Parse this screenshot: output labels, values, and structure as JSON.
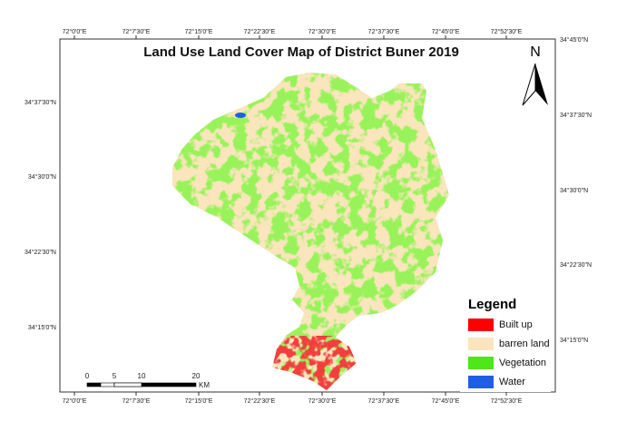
{
  "title": "Land Use Land Cover Map of District Buner 2019",
  "north": "N",
  "graticule": {
    "top": [
      "72°0'0\"E",
      "72°7'30\"E",
      "72°15'0\"E",
      "72°22'30\"E",
      "72°30'0\"E",
      "72°37'30\"E",
      "72°45'0\"E",
      "72°52'30\"E"
    ],
    "bottom": [
      "72°0'0\"E",
      "72°7'30\"E",
      "72°15'0\"E",
      "72°22'30\"E",
      "72°30'0\"E",
      "72°37'30\"E",
      "72°45'0\"E",
      "72°52'30\"E"
    ],
    "left": [
      "34°37'30\"N",
      "34°30'0\"N",
      "34°22'30\"N",
      "34°15'0\"N"
    ],
    "right": [
      "34°45'0\"N",
      "34°37'30\"N",
      "34°30'0\"N",
      "34°22'30\"N",
      "34°15'0\"N"
    ]
  },
  "legend": {
    "title": "Legend",
    "items": [
      {
        "label": "Built up",
        "color": "#ff0000"
      },
      {
        "label": "barren land",
        "color": "#fbe5bd"
      },
      {
        "label": "Vegetation",
        "color": "#4fe61a"
      },
      {
        "label": "Water",
        "color": "#1f5fe6"
      }
    ]
  },
  "scale_bar": {
    "labels": [
      "0",
      "5",
      "10",
      "20"
    ],
    "unit": "KM"
  }
}
